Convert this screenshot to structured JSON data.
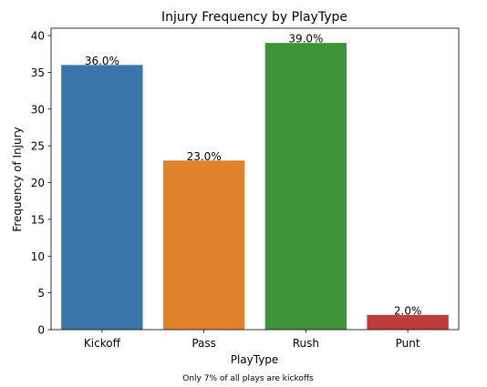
{
  "chart_data": {
    "type": "bar",
    "title": "Injury Frequency by PlayType",
    "xlabel": "PlayType",
    "ylabel": "Frequency of Injury",
    "categories": [
      "Kickoff",
      "Pass",
      "Rush",
      "Punt"
    ],
    "values": [
      36,
      23,
      39,
      2
    ],
    "data_labels": [
      "36.0%",
      "23.0%",
      "39.0%",
      "2.0%"
    ],
    "colors": [
      "#3a75a8",
      "#e0822c",
      "#3e9338",
      "#c03c3a"
    ],
    "ylim": [
      0,
      41
    ],
    "yticks": [
      0,
      5,
      10,
      15,
      20,
      25,
      30,
      35,
      40
    ],
    "grid": false,
    "legend": "none"
  },
  "caption": "Only 7% of all plays are kickoffs"
}
